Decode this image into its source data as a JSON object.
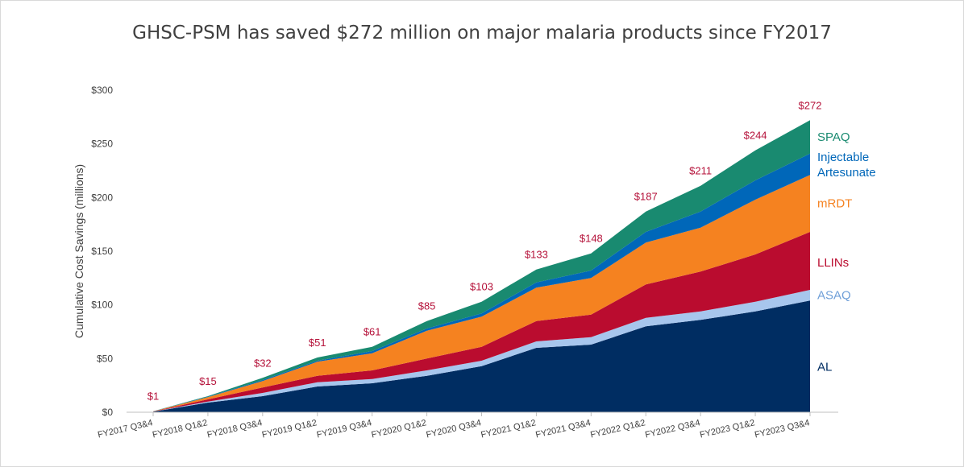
{
  "chart_data": {
    "type": "area",
    "stacked": true,
    "title": "GHSC-PSM has saved $272 million on major malaria products since FY2017",
    "xlabel": "",
    "ylabel": "Cumulative Cost Savings (millions)",
    "ylim": [
      0,
      300
    ],
    "yticks": [
      0,
      50,
      100,
      150,
      200,
      250,
      300
    ],
    "ytick_labels": [
      "$0",
      "$50",
      "$100",
      "$150",
      "$200",
      "$250",
      "$300"
    ],
    "grid": false,
    "legend": "inline-right",
    "categories": [
      "FY2017 Q3&4",
      "FY2018 Q1&2",
      "FY2018 Q3&4",
      "FY2019 Q1&2",
      "FY2019 Q3&4",
      "FY2020 Q1&2",
      "FY2020 Q3&4",
      "FY2021 Q1&2",
      "FY2021 Q3&4",
      "FY2022 Q1&2",
      "FY2022 Q3&4",
      "FY2023 Q1&2",
      "FY2023 Q3&4"
    ],
    "totals": [
      1,
      15,
      32,
      51,
      61,
      85,
      103,
      133,
      148,
      187,
      211,
      244,
      272
    ],
    "total_labels": [
      "$1",
      "$15",
      "$32",
      "$51",
      "$61",
      "$85",
      "$103",
      "$133",
      "$148",
      "$187",
      "$211",
      "$244",
      "$272"
    ],
    "series": [
      {
        "name": "AL",
        "color": "#002d62",
        "label_color": "#002d62",
        "values": [
          0.5,
          9,
          15,
          24,
          27,
          34,
          43,
          60,
          63,
          80,
          86,
          94,
          104
        ]
      },
      {
        "name": "ASAQ",
        "color": "#a7c6ed",
        "label_color": "#6f9fd8",
        "values": [
          0.1,
          1,
          3,
          4,
          4,
          5,
          5,
          6,
          7,
          8,
          8,
          9,
          10
        ]
      },
      {
        "name": "LLINs",
        "color": "#ba0c2f",
        "label_color": "#ba0c2f",
        "values": [
          0.1,
          2,
          5,
          6,
          8,
          11,
          13,
          19,
          21,
          31,
          37,
          44,
          54
        ]
      },
      {
        "name": "mRDT",
        "color": "#f58220",
        "label_color": "#f58220",
        "values": [
          0.1,
          2,
          6,
          13,
          16,
          26,
          28,
          31,
          34,
          39,
          41,
          51,
          53
        ]
      },
      {
        "name": "Injectable\nArtesunate",
        "color": "#0067b9",
        "label_color": "#0067b9",
        "values": [
          0.1,
          0.5,
          1,
          1,
          2,
          2,
          3,
          5,
          7,
          10,
          15,
          18,
          20
        ]
      },
      {
        "name": "SPAQ",
        "color": "#198a70",
        "label_color": "#198a70",
        "values": [
          0.1,
          0.5,
          2,
          3,
          4,
          7,
          11,
          12,
          16,
          19,
          24,
          28,
          31
        ]
      }
    ]
  }
}
